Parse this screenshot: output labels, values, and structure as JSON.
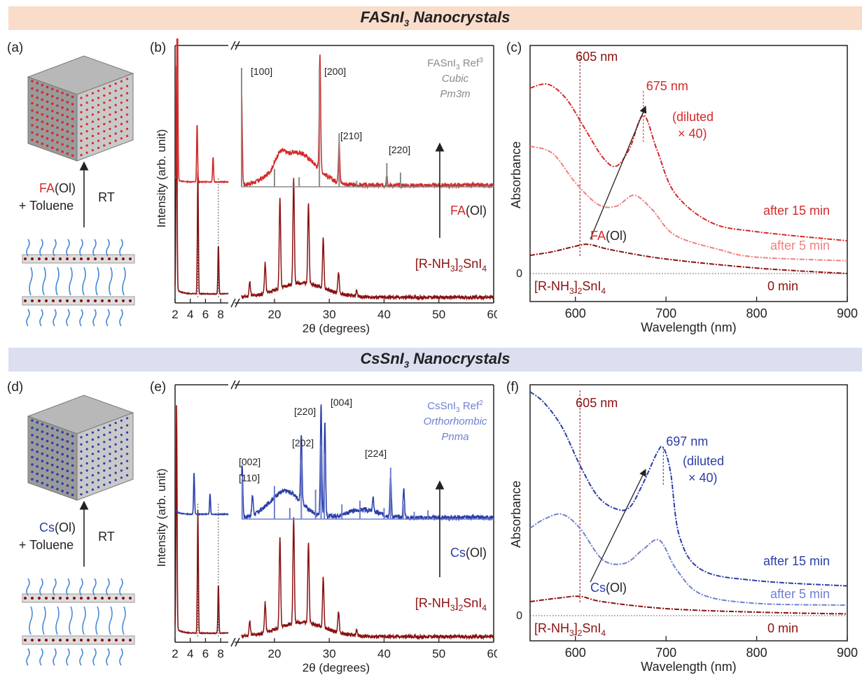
{
  "banners": {
    "top": "FASnI3 Nanocrystals",
    "bottom": "CsSnI3 Nanocrystals"
  },
  "panels": {
    "a": "(a)",
    "b": "(b)",
    "c": "(c)",
    "d": "(d)",
    "e": "(e)",
    "f": "(f)"
  },
  "colors": {
    "fa_red": "#d42a2a",
    "dark_red": "#8b1010",
    "pink": "#f08080",
    "blue": "#2b3ea8",
    "light_blue": "#6f80d0",
    "gray": "#8a8a8a"
  },
  "schemes": {
    "a": {
      "reagent_colored": "FA",
      "reagent_rest": "(Ol)",
      "solvent": "+ Toluene",
      "condition": "RT",
      "icon_top": "cubic-crystal-icon",
      "icon_bottom": "layered-perovskite-icon"
    },
    "d": {
      "reagent_colored": "Cs",
      "reagent_rest": "(Ol)",
      "solvent": "+ Toluene",
      "condition": "RT",
      "icon_top": "orthorhombic-crystal-icon",
      "icon_bottom": "layered-perovskite-icon"
    }
  },
  "chart_data": [
    {
      "panel": "b",
      "type": "line",
      "xlabel": "2θ (degrees)",
      "ylabel": "Intensity (arb. unit)",
      "xticks": [
        "2",
        "4",
        "6",
        "8",
        "20",
        "30",
        "40",
        "50",
        "60"
      ],
      "x_ranges": [
        [
          2,
          9
        ],
        [
          14,
          60
        ]
      ],
      "reference": {
        "title": "FASnI",
        "title_sub": "3",
        "title_rest": " Ref",
        "title_sup": "3",
        "phase": "Cubic",
        "space_group": "Pm3m",
        "sticks": [
          [
            14.0,
            1.0
          ],
          [
            20.0,
            0.15
          ],
          [
            24.5,
            0.08
          ],
          [
            28.2,
            1.0
          ],
          [
            31.8,
            0.45
          ],
          [
            35.0,
            0.05
          ],
          [
            40.5,
            0.2
          ],
          [
            43.0,
            0.12
          ]
        ]
      },
      "peak_labels": [
        {
          "x": 14.0,
          "label": "[100]"
        },
        {
          "x": 28.4,
          "label": "[200]"
        },
        {
          "x": 31.8,
          "label": "[210]"
        },
        {
          "x": 40.5,
          "label": "[220]"
        }
      ],
      "arrow_label_colored": "FA",
      "arrow_label_rest": "(Ol)",
      "series": [
        {
          "name": "[R-NH3]2SnI4",
          "name_main": "[R-NH",
          "name_sub1": "3",
          "name_mid": "]",
          "name_sub2": "2",
          "name_tail": "SnI",
          "name_sub3": "4",
          "peaks_low": [
            [
              2.2,
              1.0
            ],
            [
              5.0,
              0.55
            ],
            [
              7.7,
              0.22
            ]
          ],
          "peaks_high": [
            [
              15.5,
              0.12
            ],
            [
              18.3,
              0.25
            ],
            [
              21.0,
              0.75
            ],
            [
              23.5,
              0.88
            ],
            [
              26.2,
              0.68
            ],
            [
              28.9,
              0.42
            ],
            [
              31.7,
              0.18
            ],
            [
              35.0,
              0.05
            ]
          ]
        },
        {
          "name": "FA(Ol)",
          "peaks_low": [
            [
              2.3,
              1.0
            ],
            [
              4.9,
              0.28
            ],
            [
              7.0,
              0.12
            ]
          ],
          "peaks_high": [
            [
              14.0,
              0.7
            ],
            [
              28.3,
              0.88
            ],
            [
              31.8,
              0.32
            ],
            [
              40.5,
              0.08
            ]
          ]
        }
      ]
    },
    {
      "panel": "c",
      "type": "line",
      "xlabel": "Wavelength (nm)",
      "ylabel": "Absorbance",
      "xlim": [
        550,
        900
      ],
      "xticks": [
        600,
        700,
        800,
        900
      ],
      "yzero_label": "0",
      "annotations": [
        {
          "x": 605,
          "label": "605 nm"
        },
        {
          "x": 675,
          "label": "675 nm"
        }
      ],
      "dilution_note": [
        "(diluted",
        "× 40)"
      ],
      "arrow_label_colored": "FA",
      "arrow_label_rest": "(Ol)",
      "series": [
        {
          "name": "0 min",
          "label_precursor": "[R-NH3]2SnI4",
          "x": [
            550,
            575,
            600,
            615,
            640,
            700,
            800,
            900
          ],
          "y": [
            0.1,
            0.12,
            0.15,
            0.16,
            0.13,
            0.08,
            0.03,
            0.0
          ]
        },
        {
          "name": "after 5 min",
          "x": [
            550,
            575,
            600,
            625,
            645,
            665,
            685,
            710,
            760,
            800,
            900
          ],
          "y": [
            0.7,
            0.66,
            0.5,
            0.38,
            0.37,
            0.43,
            0.35,
            0.21,
            0.13,
            0.09,
            0.07
          ]
        },
        {
          "name": "after 15 min",
          "x": [
            550,
            570,
            590,
            610,
            630,
            645,
            660,
            675,
            690,
            710,
            750,
            800,
            900
          ],
          "y": [
            1.02,
            1.04,
            0.96,
            0.8,
            0.64,
            0.59,
            0.69,
            0.87,
            0.68,
            0.44,
            0.28,
            0.23,
            0.18
          ]
        }
      ]
    },
    {
      "panel": "e",
      "type": "line",
      "xlabel": "2θ (degrees)",
      "ylabel": "Intensity (arb. unit)",
      "xticks": [
        "2",
        "4",
        "6",
        "8",
        "20",
        "30",
        "40",
        "50",
        "60"
      ],
      "x_ranges": [
        [
          2,
          9
        ],
        [
          14,
          60
        ]
      ],
      "reference": {
        "title": "CsSnI",
        "title_sub": "3",
        "title_rest": " Ref",
        "title_sup": "2",
        "phase": "Orthorhombic",
        "space_group": "Pnma",
        "sticks": [
          [
            14.1,
            0.55
          ],
          [
            20.0,
            0.45
          ],
          [
            22.8,
            0.15
          ],
          [
            24.9,
            0.8
          ],
          [
            27.5,
            0.4
          ],
          [
            28.5,
            1.0
          ],
          [
            29.1,
            0.9
          ],
          [
            32.3,
            0.2
          ],
          [
            35.6,
            0.25
          ],
          [
            40.0,
            0.15
          ],
          [
            41.2,
            0.7
          ],
          [
            43.5,
            0.2
          ],
          [
            45.5,
            0.1
          ],
          [
            48.0,
            0.12
          ]
        ]
      },
      "peak_labels": [
        {
          "x": 14.1,
          "label": "[002]"
        },
        {
          "x": 14.1,
          "label": "[110]"
        },
        {
          "x": 24.9,
          "label": "[202]"
        },
        {
          "x": 28.5,
          "label": "[220]"
        },
        {
          "x": 29.1,
          "label": "[004]"
        },
        {
          "x": 41.2,
          "label": "[224]"
        }
      ],
      "arrow_label_colored": "Cs",
      "arrow_label_rest": "(Ol)",
      "series": [
        {
          "name": "[R-NH3]2SnI4",
          "name_main": "[R-NH",
          "name_sub1": "3",
          "name_mid": "]",
          "name_sub2": "2",
          "name_tail": "SnI",
          "name_sub3": "4",
          "peaks_low": [
            [
              2.2,
              1.0
            ],
            [
              5.0,
              0.55
            ],
            [
              7.7,
              0.22
            ]
          ],
          "peaks_high": [
            [
              15.5,
              0.12
            ],
            [
              18.3,
              0.25
            ],
            [
              21.0,
              0.75
            ],
            [
              23.5,
              0.88
            ],
            [
              26.2,
              0.68
            ],
            [
              28.9,
              0.42
            ],
            [
              31.7,
              0.18
            ],
            [
              35.0,
              0.05
            ]
          ]
        },
        {
          "name": "Cs(Ol)",
          "peaks_low": [
            [
              4.5,
              0.2
            ],
            [
              6.6,
              0.1
            ]
          ],
          "peaks_high": [
            [
              14.1,
              0.4
            ],
            [
              16.0,
              0.15
            ],
            [
              24.9,
              0.52
            ],
            [
              28.5,
              0.85
            ],
            [
              29.2,
              0.72
            ],
            [
              38.0,
              0.1
            ],
            [
              41.2,
              0.3
            ],
            [
              43.6,
              0.22
            ]
          ]
        }
      ]
    },
    {
      "panel": "f",
      "type": "line",
      "xlabel": "Wavelength (nm)",
      "ylabel": "Absorbance",
      "xlim": [
        550,
        900
      ],
      "xticks": [
        600,
        700,
        800,
        900
      ],
      "yzero_label": "0",
      "annotations": [
        {
          "x": 605,
          "label": "605 nm"
        },
        {
          "x": 697,
          "label": "697 nm"
        }
      ],
      "dilution_note": [
        "(diluted",
        "× 40)"
      ],
      "arrow_label_colored": "Cs",
      "arrow_label_rest": "(Ol)",
      "series": [
        {
          "name": "0 min",
          "label_precursor": "[R-NH3]2SnI4",
          "x": [
            550,
            580,
            605,
            630,
            700,
            800,
            900
          ],
          "y": [
            0.08,
            0.1,
            0.11,
            0.08,
            0.04,
            0.02,
            0.01
          ]
        },
        {
          "name": "after 5 min",
          "x": [
            550,
            565,
            585,
            605,
            630,
            655,
            675,
            693,
            712,
            740,
            800,
            900
          ],
          "y": [
            0.5,
            0.55,
            0.58,
            0.5,
            0.32,
            0.3,
            0.38,
            0.43,
            0.26,
            0.12,
            0.07,
            0.06
          ]
        },
        {
          "name": "after 15 min",
          "x": [
            550,
            565,
            585,
            605,
            625,
            645,
            660,
            675,
            690,
            697,
            705,
            715,
            740,
            800,
            900
          ],
          "y": [
            1.28,
            1.22,
            1.08,
            0.86,
            0.68,
            0.61,
            0.62,
            0.76,
            0.93,
            0.96,
            0.82,
            0.45,
            0.26,
            0.2,
            0.17
          ]
        }
      ]
    }
  ]
}
